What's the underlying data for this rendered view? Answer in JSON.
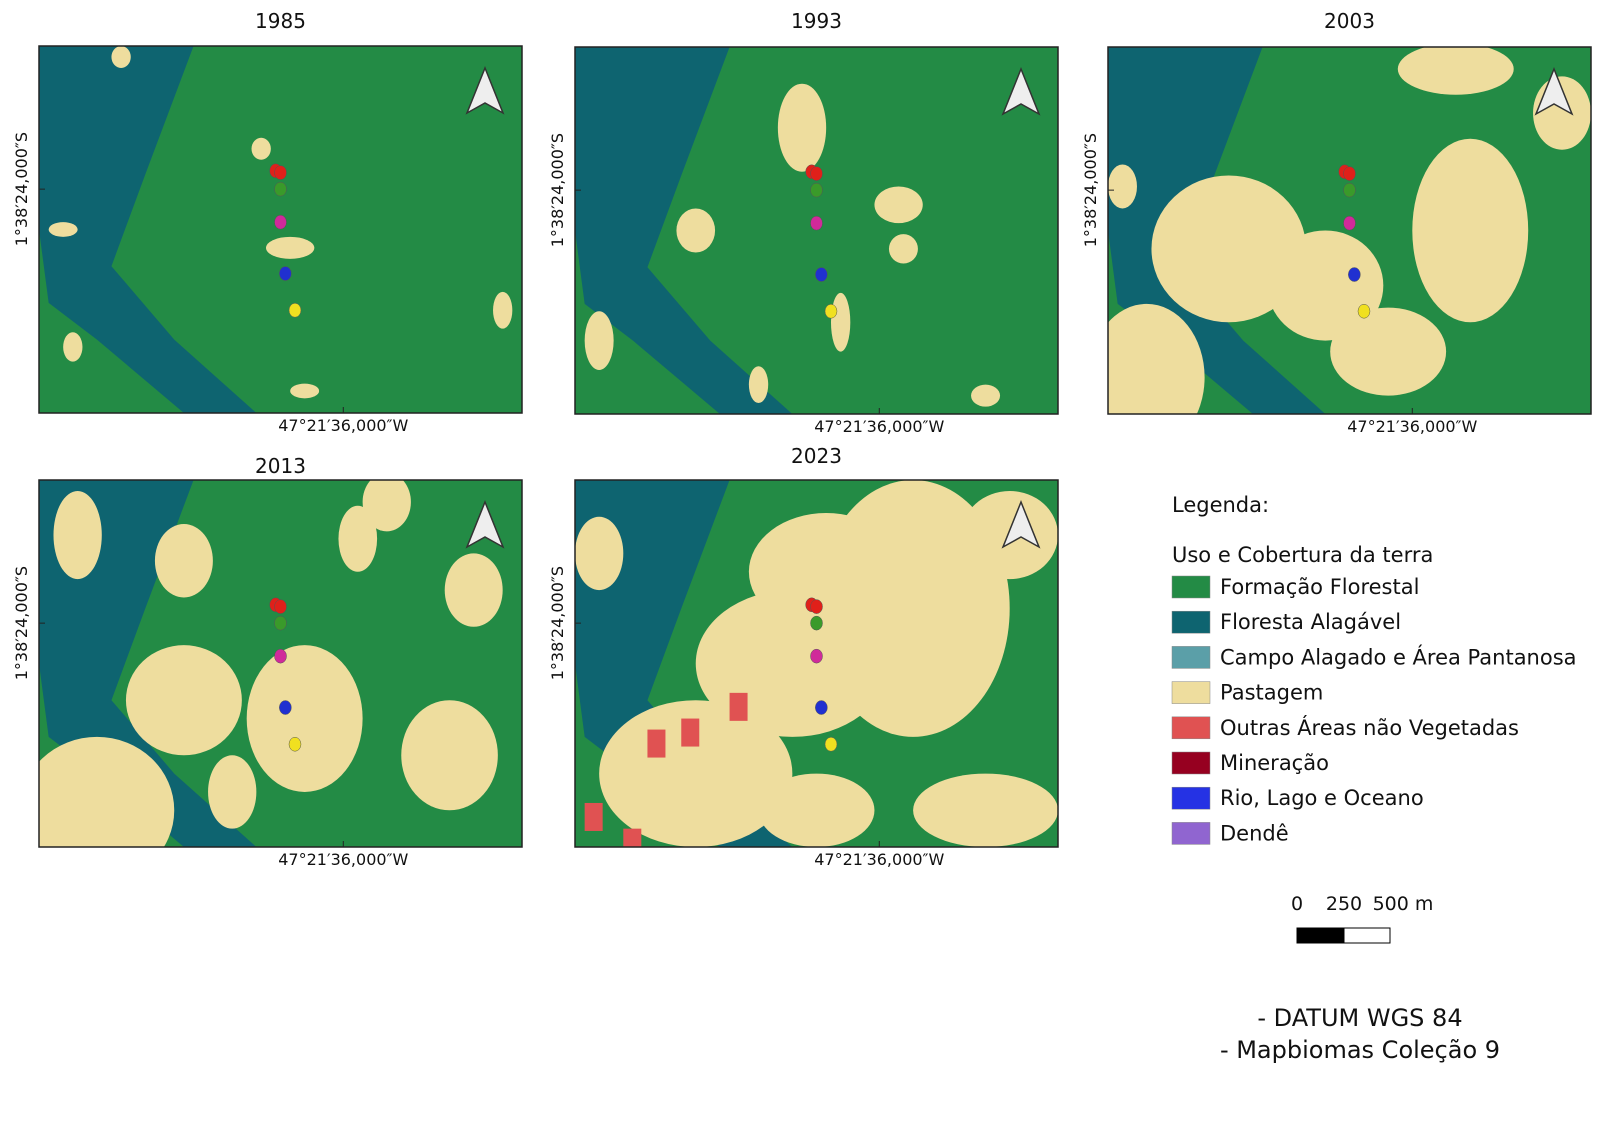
{
  "panels": [
    {
      "title": "1985",
      "lat_label": "1°38′24,000″S",
      "lon_label": "47°21′36,000″W"
    },
    {
      "title": "1993",
      "lat_label": "1°38′24,000″S",
      "lon_label": "47°21′36,000″W"
    },
    {
      "title": "2003",
      "lat_label": "1°38′24,000″S",
      "lon_label": "47°21′36,000″W"
    },
    {
      "title": "2013",
      "lat_label": "1°38′24,000″S",
      "lon_label": "47°21′36,000″W"
    },
    {
      "title": "2023",
      "lat_label": "1°38′24,000″S",
      "lon_label": "47°21′36,000″W"
    }
  ],
  "legend": {
    "title": "Legenda:",
    "subtitle": "Uso e Cobertura da terra",
    "items": [
      {
        "label": "Formação Florestal",
        "color": "#238b45"
      },
      {
        "label": "Floresta Alagável",
        "color": "#0e6470"
      },
      {
        "label": "Campo Alagado e Área Pantanosa",
        "color": "#5b9fa8"
      },
      {
        "label": "Pastagem",
        "color": "#eedd9e"
      },
      {
        "label": "Outras Áreas não Vegetadas",
        "color": "#e05252"
      },
      {
        "label": "Mineração",
        "color": "#960020"
      },
      {
        "label": "Rio, Lago e Oceano",
        "color": "#2532e4"
      },
      {
        "label": "Dendê",
        "color": "#9065d0"
      }
    ]
  },
  "scale_bar": {
    "labels": [
      "0",
      "250",
      "500 m"
    ]
  },
  "notes": [
    "- DATUM WGS 84",
    "- Mapbiomas Coleção 9"
  ]
}
